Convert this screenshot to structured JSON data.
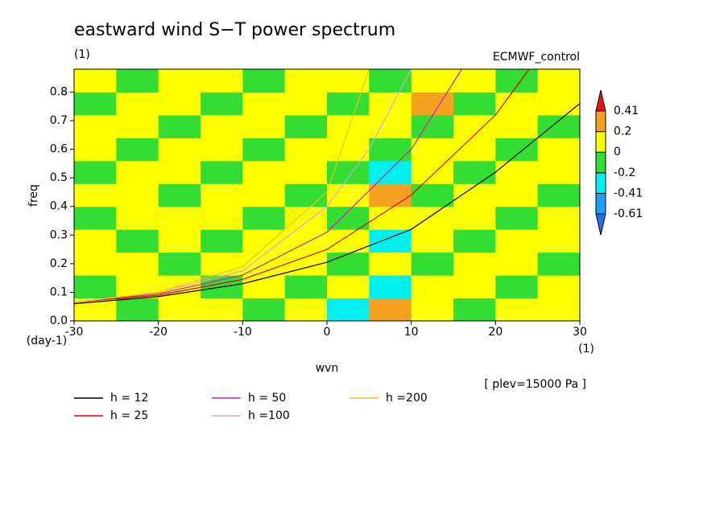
{
  "chart_data": {
    "type": "contour",
    "title": "eastward wind S−T power spectrum",
    "subtitle": "(1)",
    "dataset": "ECMWF_control",
    "ylabel": "freq",
    "yunits": "(day-1)",
    "xlabel": "wvn",
    "xunits": "(1)",
    "annotation": "[ plev=15000 Pa ]",
    "xlim": [
      -30,
      30
    ],
    "ylim": [
      0,
      0.88
    ],
    "xticks": [
      -30,
      -20,
      -10,
      0,
      10,
      20,
      30
    ],
    "yticks": [
      {
        "value": 0,
        "label": "0.0"
      },
      0.1,
      0.2,
      0.3,
      0.4,
      0.5,
      0.6,
      0.7,
      0.8
    ],
    "colorbar": {
      "levels": [
        -0.61,
        -0.41,
        -0.2,
        0,
        0.2,
        0.41
      ],
      "colors": [
        "#1f6fef",
        "#1f9fff",
        "#00f0f0",
        "#33dd33",
        "#ffff00",
        "#f5a020",
        "#ee1010"
      ]
    },
    "field": {
      "x": [
        -27.5,
        -22.5,
        -17.5,
        -12.5,
        -7.5,
        -2.5,
        2.5,
        7.5,
        12.5,
        17.5,
        22.5,
        27.5
      ],
      "y": [
        0.04,
        0.12,
        0.2,
        0.28,
        0.36,
        0.44,
        0.52,
        0.6,
        0.68,
        0.76,
        0.84
      ],
      "values": [
        [
          0.1,
          -0.1,
          0.1,
          0.1,
          -0.1,
          0.1,
          -0.3,
          0.3,
          0.1,
          -0.1,
          0.1,
          0.1
        ],
        [
          -0.1,
          0.1,
          0.1,
          -0.1,
          0.1,
          -0.1,
          0.1,
          -0.3,
          0.1,
          0.1,
          -0.1,
          0.1
        ],
        [
          0.1,
          0.1,
          -0.1,
          0.1,
          0.1,
          0.1,
          -0.1,
          0.1,
          -0.1,
          0.1,
          0.1,
          -0.1
        ],
        [
          0.1,
          -0.1,
          0.1,
          -0.1,
          0.1,
          0.1,
          0.1,
          -0.3,
          0.1,
          -0.1,
          0.1,
          0.1
        ],
        [
          -0.1,
          0.1,
          0.1,
          0.1,
          -0.1,
          0.1,
          -0.1,
          0.1,
          0.1,
          0.1,
          -0.1,
          0.1
        ],
        [
          0.1,
          0.1,
          -0.1,
          0.1,
          0.1,
          -0.1,
          0.1,
          0.3,
          -0.1,
          0.1,
          0.1,
          -0.1
        ],
        [
          -0.1,
          0.1,
          0.1,
          -0.1,
          0.1,
          0.1,
          -0.1,
          -0.3,
          0.1,
          -0.1,
          0.1,
          0.1
        ],
        [
          0.1,
          -0.1,
          0.1,
          0.1,
          -0.1,
          0.1,
          0.1,
          -0.1,
          0.1,
          0.1,
          -0.1,
          0.1
        ],
        [
          0.1,
          0.1,
          -0.1,
          0.1,
          0.1,
          -0.1,
          0.1,
          0.1,
          -0.1,
          0.1,
          0.1,
          -0.1
        ],
        [
          -0.1,
          0.1,
          0.1,
          -0.1,
          0.1,
          0.1,
          -0.1,
          0.1,
          0.3,
          -0.1,
          0.1,
          0.1
        ],
        [
          0.1,
          -0.1,
          0.1,
          0.1,
          -0.1,
          0.1,
          0.1,
          -0.1,
          0.1,
          0.1,
          -0.1,
          0.1
        ]
      ]
    },
    "series": [
      {
        "name": "h = 12",
        "color": "#000000",
        "x": [
          -30,
          -20,
          -10,
          0,
          10,
          20,
          30
        ],
        "values": [
          0.06,
          0.085,
          0.13,
          0.205,
          0.32,
          0.52,
          0.76
        ]
      },
      {
        "name": "h = 25",
        "color": "#e00000",
        "x": [
          -30,
          -20,
          -10,
          0,
          10,
          20,
          24
        ],
        "values": [
          0.065,
          0.09,
          0.145,
          0.25,
          0.44,
          0.72,
          0.88
        ]
      },
      {
        "name": "h = 50",
        "color": "#d020b0",
        "x": [
          -30,
          -20,
          -10,
          0,
          10,
          16
        ],
        "values": [
          0.065,
          0.095,
          0.16,
          0.31,
          0.6,
          0.88
        ]
      },
      {
        "name": "h =100",
        "color": "#e0a0e0",
        "x": [
          -30,
          -20,
          -10,
          0,
          5,
          10
        ],
        "values": [
          0.065,
          0.1,
          0.175,
          0.4,
          0.6,
          0.88
        ]
      },
      {
        "name": "h =200",
        "color": "#f0c020",
        "x": [
          -30,
          -20,
          -10,
          0,
          5
        ],
        "values": [
          0.065,
          0.1,
          0.19,
          0.45,
          0.88
        ]
      }
    ]
  }
}
